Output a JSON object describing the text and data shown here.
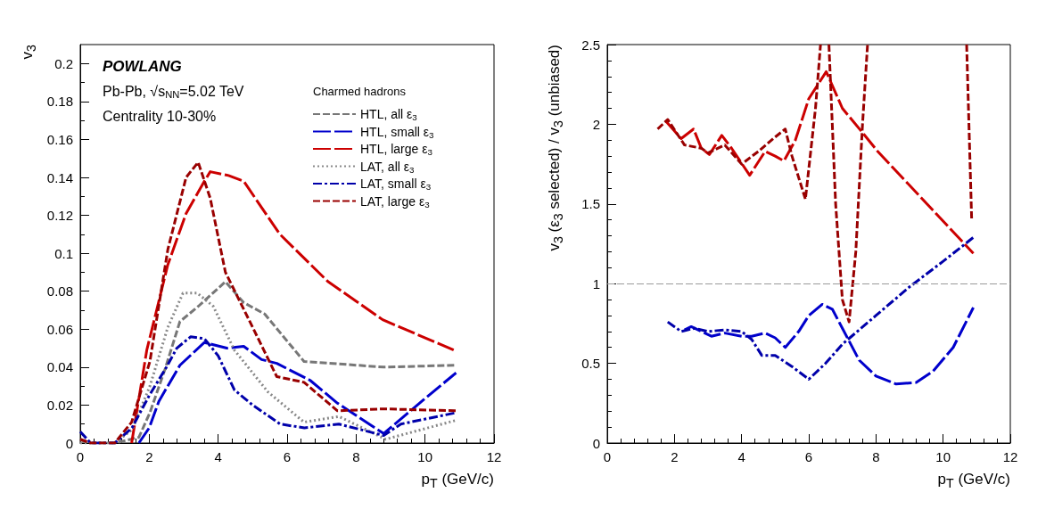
{
  "chart_data": [
    {
      "type": "line",
      "xlabel": "p$_{T}$ (GeV/c)",
      "ylabel": "v$_{3}$",
      "legend_title": "Charmed hadrons",
      "legend": "top right",
      "xlim": [
        0,
        12
      ],
      "xticks": [
        0,
        2,
        4,
        6,
        8,
        10,
        12
      ],
      "ylim": [
        0,
        0.21
      ],
      "yticks": [
        0,
        0.02,
        0.04,
        0.06,
        0.08,
        0.1,
        0.12,
        0.14,
        0.16,
        0.18,
        0.2
      ],
      "annotations": [
        "POWLANG",
        "Pb-Pb, √s$_{NN}$=5.02 TeV",
        "Centrality 10-30%"
      ],
      "series": [
        {
          "name": "HTL, all ε$_{3}$",
          "color": "#777777",
          "line_style": "dashed",
          "x": [
            0,
            0.2,
            1,
            1.7,
            2.02,
            2.46,
            2.89,
            3.42,
            4.21,
            4.74,
            5.35,
            6.49,
            8.8,
            10.9
          ],
          "values": [
            0.002,
            0,
            0,
            0.003,
            0.016,
            0.039,
            0.064,
            0.072,
            0.085,
            0.074,
            0.068,
            0.043,
            0.04,
            0.041
          ]
        },
        {
          "name": "HTL, small ε$_{3}$",
          "color": "#0000cc",
          "line_style": "longdash",
          "x": [
            1.7,
            2.0,
            2.28,
            2.89,
            3.6,
            4.25,
            4.74,
            5.26,
            5.7,
            6.67,
            7.46,
            8.8,
            10.1,
            10.9
          ],
          "values": [
            0,
            0.008,
            0.022,
            0.041,
            0.053,
            0.05,
            0.051,
            0.044,
            0.042,
            0.033,
            0.021,
            0.005,
            0.025,
            0.037
          ]
        },
        {
          "name": "HTL, large ε$_{3}$",
          "color": "#cc0000",
          "line_style": "longdash",
          "x": [
            1.49,
            1.93,
            2.54,
            3.07,
            3.6,
            3.77,
            4.3,
            4.74,
            5.79,
            7.19,
            8.77,
            10.83
          ],
          "values": [
            0,
            0.049,
            0.094,
            0.121,
            0.138,
            0.143,
            0.141,
            0.138,
            0.11,
            0.085,
            0.065,
            0.049
          ]
        },
        {
          "name": "LAT, all ε$_{3}$",
          "color": "#888888",
          "line_style": "dotted",
          "x": [
            0,
            1,
            1.5,
            2.02,
            2.54,
            2.98,
            3.4,
            3.86,
            4.47,
            5.44,
            6.49,
            7.5,
            8.86,
            10.9
          ],
          "values": [
            0,
            0,
            0.007,
            0.03,
            0.061,
            0.079,
            0.079,
            0.072,
            0.049,
            0.027,
            0.011,
            0.014,
            0.002,
            0.012
          ]
        },
        {
          "name": "LAT, small ε$_{3}$",
          "color": "#0000aa",
          "line_style": "dashdot",
          "x": [
            0,
            0.3,
            1,
            1.5,
            2.0,
            2.5,
            2.8,
            3.2,
            3.6,
            4.0,
            4.47,
            5.0,
            5.8,
            6.5,
            7.5,
            8.8,
            9.3,
            10.9
          ],
          "values": [
            0.006,
            0,
            0,
            0.008,
            0.025,
            0.04,
            0.05,
            0.056,
            0.055,
            0.046,
            0.028,
            0.02,
            0.01,
            0.008,
            0.01,
            0.004,
            0.01,
            0.016
          ]
        },
        {
          "name": "LAT, large ε$_{3}$",
          "color": "#990000",
          "line_style": "dashed",
          "x": [
            0,
            0.3,
            1,
            1.49,
            2.02,
            2.54,
            3.07,
            3.42,
            3.77,
            4.21,
            5.0,
            5.7,
            6.49,
            7.46,
            8.8,
            10.9
          ],
          "values": [
            0.002,
            0,
            0,
            0.011,
            0.043,
            0.102,
            0.14,
            0.148,
            0.129,
            0.09,
            0.061,
            0.035,
            0.032,
            0.017,
            0.018,
            0.017
          ]
        }
      ]
    },
    {
      "type": "line",
      "xlabel": "p$_{T}$ (GeV/c)",
      "ylabel": "v$_{3}$ (ε$_{3}$ selected) / v$_{3}$ (unbiased)",
      "xlim": [
        0,
        12
      ],
      "xticks": [
        0,
        2,
        4,
        6,
        8,
        10,
        12
      ],
      "ylim": [
        0,
        2.5
      ],
      "yticks": [
        0,
        0.5,
        1,
        1.5,
        2,
        2.5
      ],
      "ref_lines": [
        {
          "axis": "y",
          "value": 1,
          "color": "#999999",
          "line_style": "dashed"
        }
      ],
      "series": [
        {
          "color": "#0000cc",
          "line_style": "longdash",
          "x": [
            2.3,
            2.5,
            2.8,
            3.1,
            3.5,
            4.0,
            4.3,
            4.7,
            5.0,
            5.3,
            5.7,
            6.0,
            6.4,
            6.7,
            7.0,
            7.5,
            8.0,
            8.6,
            9.2,
            9.7,
            10.3,
            10.9
          ],
          "values": [
            0.71,
            0.73,
            0.7,
            0.67,
            0.69,
            0.67,
            0.67,
            0.69,
            0.66,
            0.6,
            0.7,
            0.8,
            0.87,
            0.84,
            0.72,
            0.52,
            0.42,
            0.37,
            0.38,
            0.45,
            0.6,
            0.85
          ]
        },
        {
          "color": "#cc0000",
          "line_style": "longdash",
          "x": [
            1.74,
            2.2,
            2.57,
            2.8,
            3.04,
            3.41,
            3.7,
            4.24,
            4.7,
            5.0,
            5.26,
            5.6,
            6.0,
            6.52,
            7.0,
            7.59,
            8.05,
            10.9
          ],
          "values": [
            2.02,
            1.91,
            1.97,
            1.85,
            1.81,
            1.93,
            1.85,
            1.68,
            1.83,
            1.8,
            1.77,
            1.9,
            2.16,
            2.33,
            2.1,
            1.95,
            1.83,
            1.19
          ]
        },
        {
          "color": "#0000aa",
          "line_style": "dashdot",
          "x": [
            1.8,
            2.2,
            2.6,
            3.0,
            3.5,
            4.0,
            4.3,
            4.6,
            5.0,
            5.5,
            6.0,
            6.5,
            7.0,
            8.0,
            9.0,
            10.0,
            10.9
          ],
          "values": [
            0.76,
            0.7,
            0.72,
            0.7,
            0.71,
            0.7,
            0.65,
            0.55,
            0.55,
            0.48,
            0.4,
            0.5,
            0.62,
            0.8,
            0.98,
            1.14,
            1.29
          ]
        },
        {
          "color": "#990000",
          "line_style": "dashed",
          "x": [
            1.5,
            1.8,
            2.3,
            2.8,
            3.0,
            3.5,
            4.0,
            4.5,
            5.0,
            5.3,
            5.5,
            5.9,
            6.2,
            6.35,
            6.5,
            6.6,
            6.8,
            7.0,
            7.2,
            7.4,
            7.6,
            7.75,
            9.0,
            10.7,
            10.85
          ],
          "values": [
            1.97,
            2.03,
            1.87,
            1.85,
            1.82,
            1.87,
            1.75,
            1.83,
            1.92,
            1.97,
            1.8,
            1.53,
            2.1,
            2.5,
            null,
            2.5,
            1.5,
            0.9,
            0.76,
            1.2,
            2.0,
            2.5,
            null,
            2.5,
            1.4
          ]
        }
      ]
    }
  ]
}
